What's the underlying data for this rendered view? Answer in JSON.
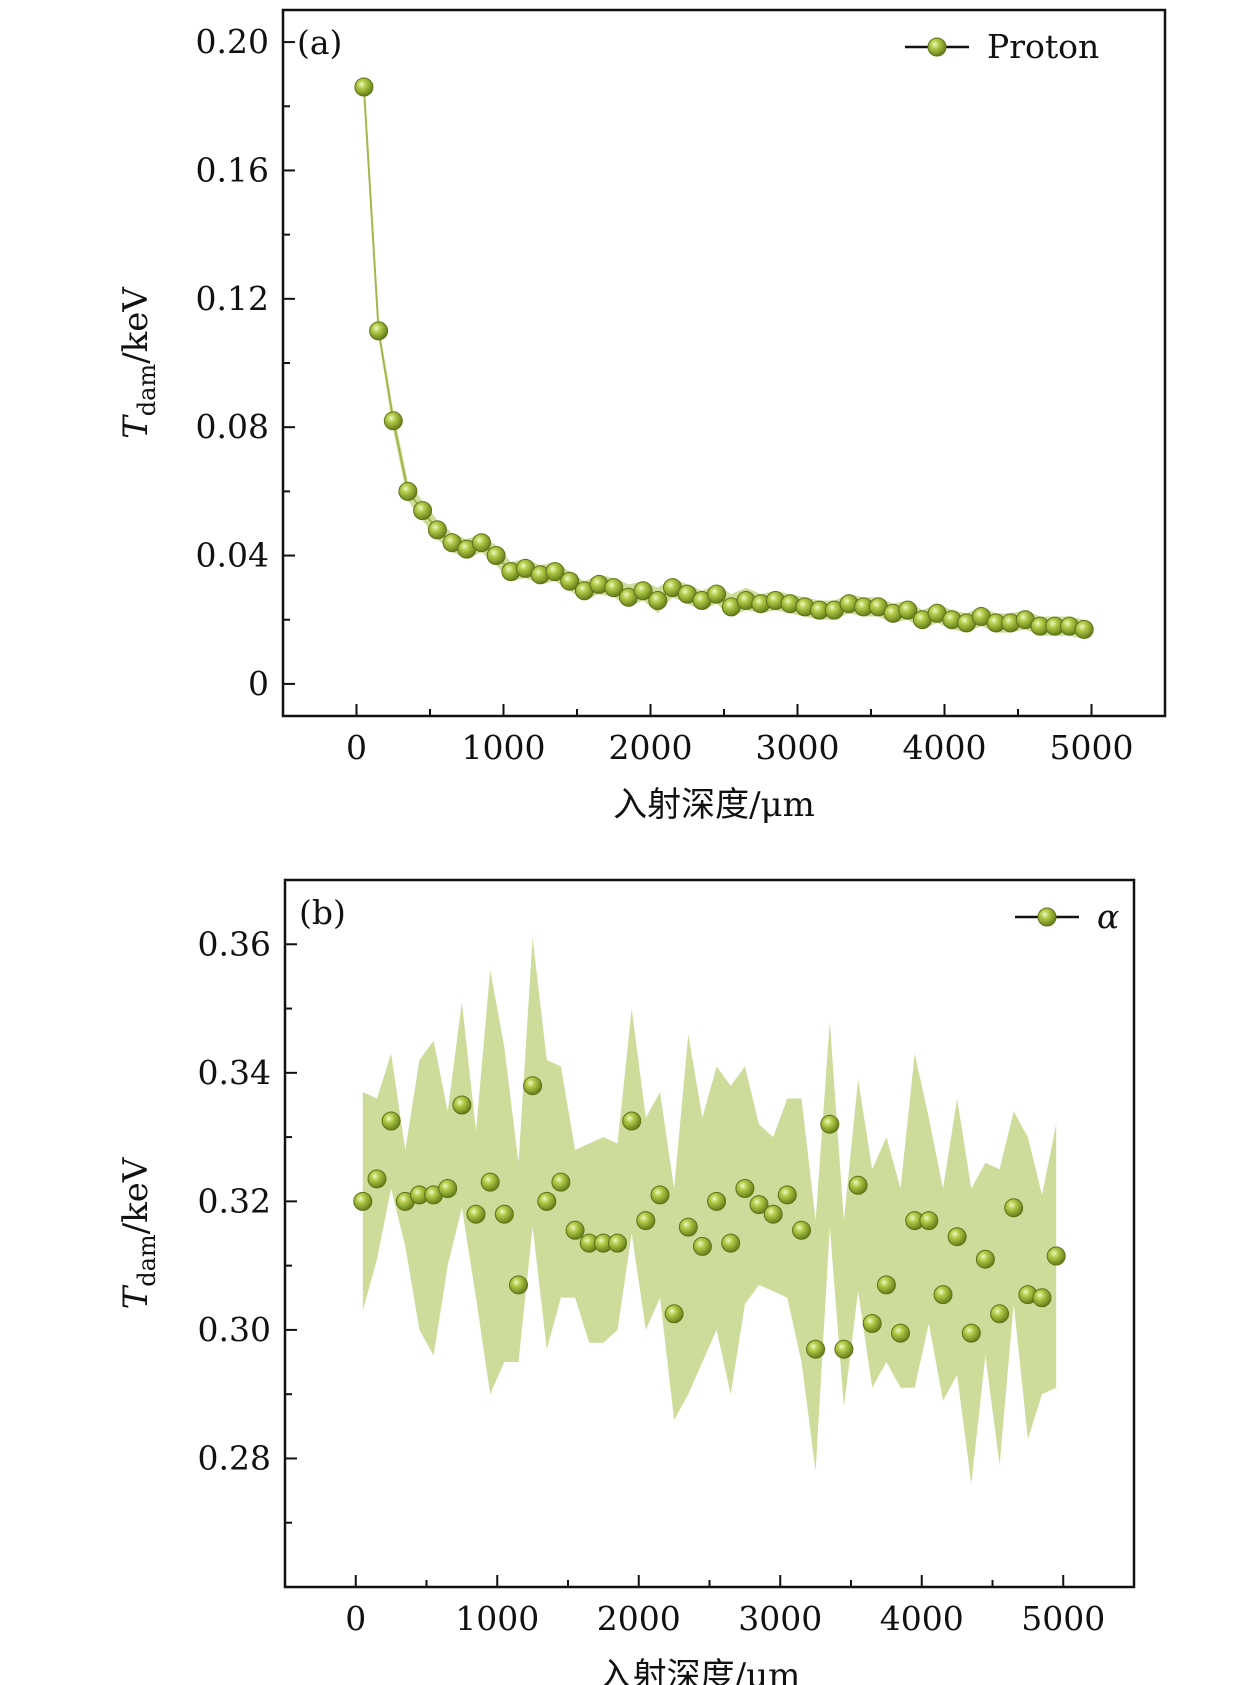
{
  "colors": {
    "marker": "#8aa325",
    "marker_highlight": "#e3f0a0",
    "marker_edge": "#5f7316",
    "band": "#c5d68a",
    "line": "#9fb84a",
    "axis": "#111111"
  },
  "chart_data": [
    {
      "id": "a",
      "type": "scatter",
      "panel_label": "(a)",
      "series_name": "Proton",
      "legend_position": "top-right",
      "xlabel": "入射深度/μm",
      "ylabel_main": "T",
      "ylabel_sub": "dam",
      "ylabel_unit": "/keV",
      "xlim": [
        -500,
        5500
      ],
      "ylim": [
        -0.01,
        0.21
      ],
      "xticks": [
        0,
        1000,
        2000,
        3000,
        4000,
        5000
      ],
      "xtick_labels": [
        "0",
        "1000",
        "2000",
        "3000",
        "4000",
        "5000"
      ],
      "yticks": [
        0,
        0.04,
        0.08,
        0.12,
        0.16,
        0.2
      ],
      "ytick_labels": [
        "0",
        "0.04",
        "0.08",
        "0.12",
        "0.16",
        "0.20"
      ],
      "x": [
        50,
        150,
        250,
        350,
        450,
        550,
        650,
        750,
        850,
        950,
        1050,
        1150,
        1250,
        1350,
        1450,
        1550,
        1650,
        1750,
        1850,
        1950,
        2050,
        2150,
        2250,
        2350,
        2450,
        2550,
        2650,
        2750,
        2850,
        2950,
        3050,
        3150,
        3250,
        3350,
        3450,
        3550,
        3650,
        3750,
        3850,
        3950,
        4050,
        4150,
        4250,
        4350,
        4450,
        4550,
        4650,
        4750,
        4850,
        4950
      ],
      "values": [
        0.186,
        0.11,
        0.082,
        0.06,
        0.054,
        0.048,
        0.044,
        0.042,
        0.044,
        0.04,
        0.035,
        0.036,
        0.034,
        0.035,
        0.032,
        0.029,
        0.031,
        0.03,
        0.027,
        0.029,
        0.026,
        0.03,
        0.028,
        0.026,
        0.028,
        0.024,
        0.026,
        0.025,
        0.026,
        0.025,
        0.024,
        0.023,
        0.023,
        0.025,
        0.024,
        0.024,
        0.022,
        0.023,
        0.02,
        0.022,
        0.02,
        0.019,
        0.021,
        0.019,
        0.019,
        0.02,
        0.018,
        0.018,
        0.018,
        0.017
      ],
      "band_upper": [
        0.187,
        0.112,
        0.085,
        0.063,
        0.057,
        0.051,
        0.047,
        0.045,
        0.047,
        0.043,
        0.038,
        0.039,
        0.037,
        0.038,
        0.035,
        0.032,
        0.034,
        0.033,
        0.031,
        0.032,
        0.03,
        0.033,
        0.031,
        0.029,
        0.031,
        0.028,
        0.03,
        0.028,
        0.029,
        0.028,
        0.027,
        0.026,
        0.026,
        0.028,
        0.027,
        0.027,
        0.025,
        0.026,
        0.023,
        0.025,
        0.023,
        0.022,
        0.024,
        0.022,
        0.022,
        0.023,
        0.021,
        0.021,
        0.021,
        0.02
      ],
      "band_lower": [
        0.185,
        0.108,
        0.079,
        0.057,
        0.051,
        0.045,
        0.041,
        0.039,
        0.041,
        0.037,
        0.032,
        0.033,
        0.031,
        0.032,
        0.029,
        0.026,
        0.028,
        0.027,
        0.024,
        0.026,
        0.022,
        0.027,
        0.025,
        0.023,
        0.025,
        0.021,
        0.023,
        0.022,
        0.023,
        0.022,
        0.021,
        0.02,
        0.02,
        0.022,
        0.021,
        0.021,
        0.019,
        0.02,
        0.017,
        0.019,
        0.017,
        0.016,
        0.018,
        0.016,
        0.016,
        0.017,
        0.015,
        0.015,
        0.015,
        0.014
      ]
    },
    {
      "id": "b",
      "type": "scatter",
      "panel_label": "(b)",
      "series_name": "α",
      "legend_position": "top-right",
      "xlabel": "入射深度/μm",
      "ylabel_main": "T",
      "ylabel_sub": "dam",
      "ylabel_unit": "/keV",
      "xlim": [
        -500,
        5500
      ],
      "ylim": [
        0.26,
        0.37
      ],
      "xticks": [
        0,
        1000,
        2000,
        3000,
        4000,
        5000
      ],
      "xtick_labels": [
        "0",
        "1000",
        "2000",
        "3000",
        "4000",
        "5000"
      ],
      "yticks": [
        0.28,
        0.3,
        0.32,
        0.34,
        0.36
      ],
      "ytick_labels": [
        "0.28",
        "0.30",
        "0.32",
        "0.34",
        "0.36"
      ],
      "x": [
        50,
        150,
        250,
        350,
        450,
        550,
        650,
        750,
        850,
        950,
        1050,
        1150,
        1250,
        1350,
        1450,
        1550,
        1650,
        1750,
        1850,
        1950,
        2050,
        2150,
        2250,
        2350,
        2450,
        2550,
        2650,
        2750,
        2850,
        2950,
        3050,
        3150,
        3250,
        3350,
        3450,
        3550,
        3650,
        3750,
        3850,
        3950,
        4050,
        4150,
        4250,
        4350,
        4450,
        4550,
        4650,
        4750,
        4850,
        4950
      ],
      "values": [
        0.32,
        0.3235,
        0.3325,
        0.32,
        0.321,
        0.321,
        0.322,
        0.335,
        0.318,
        0.323,
        0.318,
        0.307,
        0.338,
        0.32,
        0.323,
        0.3155,
        0.3135,
        0.3135,
        0.3135,
        0.3325,
        0.317,
        0.321,
        0.3025,
        0.316,
        0.313,
        0.32,
        0.3135,
        0.322,
        0.3195,
        0.318,
        0.321,
        0.3155,
        0.297,
        0.332,
        0.297,
        0.3225,
        0.301,
        0.307,
        0.2995,
        0.317,
        0.317,
        0.3055,
        0.3145,
        0.2995,
        0.311,
        0.3025,
        0.319,
        0.3055,
        0.305,
        0.3115
      ],
      "band_upper": [
        0.337,
        0.336,
        0.343,
        0.328,
        0.342,
        0.345,
        0.334,
        0.351,
        0.331,
        0.356,
        0.344,
        0.326,
        0.361,
        0.342,
        0.341,
        0.328,
        0.329,
        0.33,
        0.329,
        0.35,
        0.333,
        0.337,
        0.322,
        0.346,
        0.333,
        0.341,
        0.338,
        0.341,
        0.332,
        0.33,
        0.336,
        0.336,
        0.317,
        0.348,
        0.317,
        0.339,
        0.325,
        0.33,
        0.322,
        0.343,
        0.333,
        0.322,
        0.336,
        0.322,
        0.326,
        0.325,
        0.334,
        0.33,
        0.321,
        0.332
      ],
      "band_lower": [
        0.303,
        0.311,
        0.322,
        0.313,
        0.3,
        0.296,
        0.31,
        0.319,
        0.305,
        0.29,
        0.295,
        0.295,
        0.316,
        0.297,
        0.305,
        0.305,
        0.298,
        0.298,
        0.3,
        0.315,
        0.3,
        0.305,
        0.286,
        0.29,
        0.295,
        0.3,
        0.29,
        0.304,
        0.307,
        0.306,
        0.305,
        0.295,
        0.278,
        0.316,
        0.288,
        0.306,
        0.291,
        0.295,
        0.291,
        0.291,
        0.301,
        0.289,
        0.293,
        0.276,
        0.296,
        0.279,
        0.304,
        0.283,
        0.29,
        0.291
      ]
    }
  ]
}
